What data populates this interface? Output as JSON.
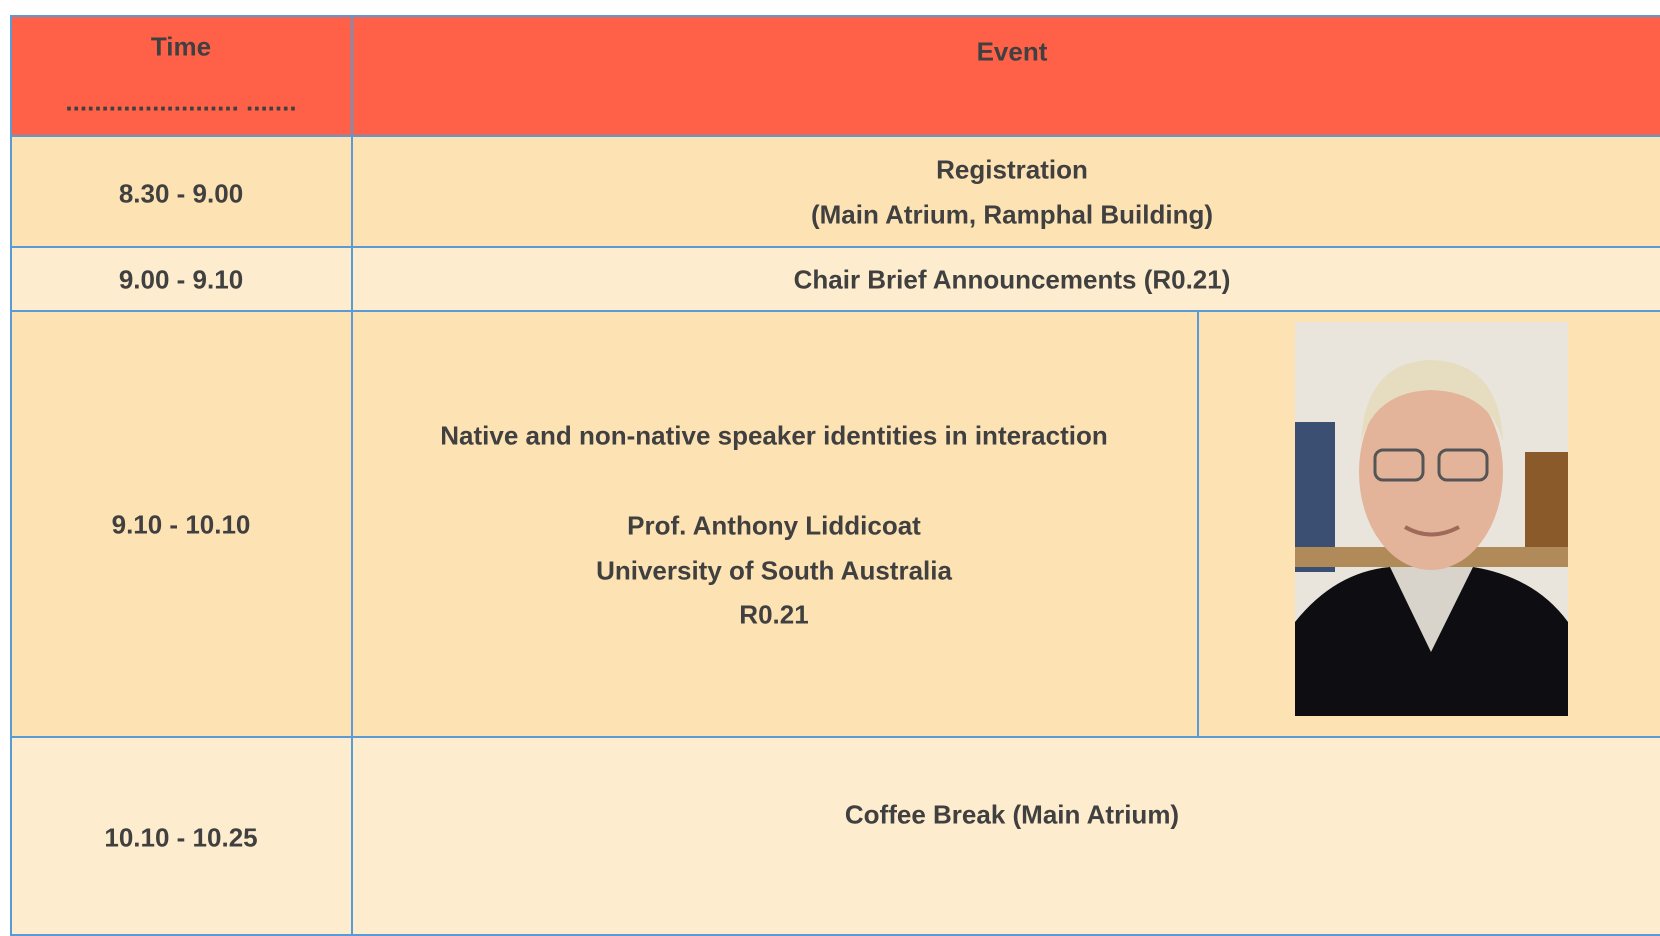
{
  "table": {
    "header": {
      "time": "Time",
      "time_dots": "........................ .......",
      "event": "Event"
    },
    "rows": [
      {
        "time": "8.30 - 9.00",
        "event": [
          "Registration",
          "(Main Atrium, Ramphal Building)"
        ]
      },
      {
        "time": "9.00 - 9.10",
        "event": [
          "Chair Brief Announcements (R0.21)"
        ]
      },
      {
        "time": "9.10 - 10.10",
        "event": [
          "Native and non-native speaker identities in interaction",
          "Prof. Anthony Liddicoat",
          "University of South Australia",
          "R0.21"
        ]
      },
      {
        "time": "10.10 - 10.25",
        "event": [
          "Coffee Break (Main Atrium)"
        ]
      }
    ]
  }
}
